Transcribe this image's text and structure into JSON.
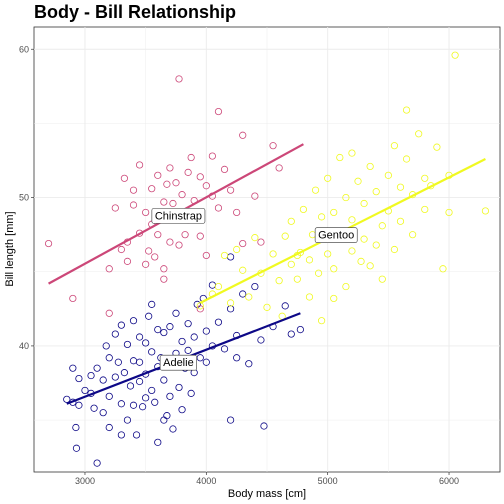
{
  "chart_data": {
    "type": "scatter",
    "title": "Body - Bill Relationship",
    "xlabel": "Body mass [cm]",
    "ylabel": "Bill length [mm]",
    "xlim": [
      2580,
      6420
    ],
    "ylim": [
      31.5,
      61.5
    ],
    "x_ticks": [
      3000,
      4000,
      5000,
      6000
    ],
    "y_ticks": [
      40,
      50,
      60
    ],
    "grid": true,
    "legend": "none",
    "series": [
      {
        "name": "Adelie",
        "color": "#0d0887",
        "points": [
          [
            2850,
            36.4
          ],
          [
            2900,
            36.2
          ],
          [
            2900,
            38.5
          ],
          [
            2925,
            34.5
          ],
          [
            2930,
            33.1
          ],
          [
            2950,
            37.8
          ],
          [
            2950,
            36.0
          ],
          [
            3000,
            37.0
          ],
          [
            3050,
            38.0
          ],
          [
            3050,
            36.8
          ],
          [
            3075,
            35.8
          ],
          [
            3100,
            32.1
          ],
          [
            3150,
            35.5
          ],
          [
            3150,
            37.7
          ],
          [
            3175,
            40.0
          ],
          [
            3200,
            34.5
          ],
          [
            3200,
            36.6
          ],
          [
            3200,
            39.2
          ],
          [
            3250,
            37.9
          ],
          [
            3250,
            40.8
          ],
          [
            3275,
            38.9
          ],
          [
            3300,
            36.1
          ],
          [
            3300,
            41.4
          ],
          [
            3325,
            38.2
          ],
          [
            3350,
            35.0
          ],
          [
            3350,
            40.1
          ],
          [
            3375,
            37.3
          ],
          [
            3400,
            36.0
          ],
          [
            3400,
            39.0
          ],
          [
            3400,
            41.7
          ],
          [
            3425,
            34.0
          ],
          [
            3450,
            37.6
          ],
          [
            3450,
            40.6
          ],
          [
            3475,
            35.9
          ],
          [
            3500,
            38.1
          ],
          [
            3500,
            40.2
          ],
          [
            3500,
            36.5
          ],
          [
            3525,
            42.0
          ],
          [
            3550,
            39.6
          ],
          [
            3550,
            37.0
          ],
          [
            3575,
            36.2
          ],
          [
            3600,
            33.5
          ],
          [
            3600,
            38.6
          ],
          [
            3600,
            41.1
          ],
          [
            3625,
            39.2
          ],
          [
            3650,
            37.7
          ],
          [
            3650,
            40.9
          ],
          [
            3675,
            35.3
          ],
          [
            3700,
            38.8
          ],
          [
            3700,
            41.3
          ],
          [
            3700,
            36.6
          ],
          [
            3725,
            34.4
          ],
          [
            3750,
            39.5
          ],
          [
            3750,
            42.2
          ],
          [
            3775,
            37.2
          ],
          [
            3800,
            40.3
          ],
          [
            3800,
            35.7
          ],
          [
            3825,
            38.5
          ],
          [
            3850,
            41.5
          ],
          [
            3850,
            39.7
          ],
          [
            3875,
            36.8
          ],
          [
            3900,
            40.6
          ],
          [
            3900,
            38.2
          ],
          [
            3925,
            42.8
          ],
          [
            3950,
            39.2
          ],
          [
            3975,
            43.2
          ],
          [
            4000,
            41.0
          ],
          [
            4000,
            38.9
          ],
          [
            4050,
            44.1
          ],
          [
            4050,
            40.0
          ],
          [
            4100,
            41.6
          ],
          [
            4150,
            39.8
          ],
          [
            4200,
            46.0
          ],
          [
            4200,
            42.5
          ],
          [
            4250,
            40.7
          ],
          [
            4300,
            43.5
          ],
          [
            4350,
            38.8
          ],
          [
            4400,
            44.0
          ],
          [
            4450,
            40.4
          ],
          [
            4475,
            34.6
          ],
          [
            4550,
            41.3
          ],
          [
            4650,
            42.7
          ],
          [
            4700,
            40.8
          ],
          [
            4775,
            41.1
          ],
          [
            4200,
            35.0
          ],
          [
            3450,
            38.9
          ],
          [
            3300,
            34.0
          ],
          [
            3650,
            35.0
          ],
          [
            3100,
            38.5
          ],
          [
            3550,
            42.8
          ],
          [
            4250,
            39.2
          ]
        ],
        "trend": [
          [
            2850,
            36.1
          ],
          [
            4775,
            42.2
          ]
        ]
      },
      {
        "name": "Chinstrap",
        "color": "#cc4778",
        "points": [
          [
            2700,
            46.9
          ],
          [
            2900,
            43.2
          ],
          [
            3200,
            45.2
          ],
          [
            3250,
            49.3
          ],
          [
            3300,
            46.5
          ],
          [
            3325,
            51.3
          ],
          [
            3350,
            45.7
          ],
          [
            3400,
            49.5
          ],
          [
            3400,
            50.5
          ],
          [
            3450,
            47.6
          ],
          [
            3450,
            52.2
          ],
          [
            3500,
            45.5
          ],
          [
            3500,
            49.0
          ],
          [
            3525,
            46.4
          ],
          [
            3550,
            50.6
          ],
          [
            3550,
            48.2
          ],
          [
            3575,
            46.0
          ],
          [
            3600,
            51.5
          ],
          [
            3600,
            47.5
          ],
          [
            3650,
            49.7
          ],
          [
            3650,
            45.2
          ],
          [
            3675,
            50.9
          ],
          [
            3700,
            52.0
          ],
          [
            3700,
            47.0
          ],
          [
            3725,
            49.6
          ],
          [
            3750,
            51.0
          ],
          [
            3775,
            46.8
          ],
          [
            3775,
            58.0
          ],
          [
            3800,
            50.2
          ],
          [
            3825,
            47.5
          ],
          [
            3850,
            51.7
          ],
          [
            3850,
            48.5
          ],
          [
            3875,
            52.7
          ],
          [
            3900,
            49.8
          ],
          [
            3950,
            47.4
          ],
          [
            3950,
            51.4
          ],
          [
            4000,
            50.8
          ],
          [
            4000,
            46.1
          ],
          [
            4050,
            52.8
          ],
          [
            4050,
            50.1
          ],
          [
            4100,
            49.3
          ],
          [
            4100,
            55.8
          ],
          [
            4150,
            51.9
          ],
          [
            4200,
            50.5
          ],
          [
            4300,
            46.9
          ],
          [
            4300,
            54.2
          ],
          [
            4400,
            50.1
          ],
          [
            4550,
            53.5
          ],
          [
            4600,
            52.0
          ],
          [
            3950,
            42.5
          ],
          [
            3200,
            42.2
          ],
          [
            4250,
            49.0
          ],
          [
            3350,
            47.0
          ],
          [
            3650,
            44.5
          ],
          [
            4450,
            47.0
          ]
        ],
        "trend": [
          [
            2700,
            44.2
          ],
          [
            4800,
            53.6
          ]
        ]
      },
      {
        "name": "Gentoo",
        "color": "#f0f921",
        "points": [
          [
            3950,
            42.7
          ],
          [
            4050,
            43.5
          ],
          [
            4100,
            44.0
          ],
          [
            4150,
            46.1
          ],
          [
            4200,
            42.9
          ],
          [
            4250,
            46.5
          ],
          [
            4300,
            45.1
          ],
          [
            4350,
            43.3
          ],
          [
            4400,
            47.3
          ],
          [
            4450,
            44.9
          ],
          [
            4500,
            42.6
          ],
          [
            4550,
            46.2
          ],
          [
            4600,
            44.4
          ],
          [
            4650,
            47.4
          ],
          [
            4700,
            45.5
          ],
          [
            4700,
            48.4
          ],
          [
            4750,
            44.5
          ],
          [
            4775,
            46.3
          ],
          [
            4800,
            49.2
          ],
          [
            4850,
            45.8
          ],
          [
            4850,
            43.3
          ],
          [
            4875,
            47.5
          ],
          [
            4900,
            50.5
          ],
          [
            4925,
            44.9
          ],
          [
            4950,
            48.7
          ],
          [
            5000,
            46.2
          ],
          [
            5000,
            51.3
          ],
          [
            5050,
            45.2
          ],
          [
            5050,
            49.0
          ],
          [
            5100,
            47.6
          ],
          [
            5100,
            52.7
          ],
          [
            5150,
            44.0
          ],
          [
            5150,
            50.0
          ],
          [
            5200,
            46.4
          ],
          [
            5200,
            48.5
          ],
          [
            5250,
            51.1
          ],
          [
            5275,
            45.7
          ],
          [
            5300,
            49.6
          ],
          [
            5300,
            47.2
          ],
          [
            5350,
            52.1
          ],
          [
            5400,
            46.8
          ],
          [
            5400,
            50.4
          ],
          [
            5450,
            48.1
          ],
          [
            5450,
            44.5
          ],
          [
            5500,
            51.5
          ],
          [
            5500,
            49.1
          ],
          [
            5550,
            46.5
          ],
          [
            5550,
            53.5
          ],
          [
            5600,
            50.7
          ],
          [
            5600,
            48.4
          ],
          [
            5650,
            52.6
          ],
          [
            5650,
            55.9
          ],
          [
            5700,
            50.2
          ],
          [
            5700,
            47.5
          ],
          [
            5750,
            54.3
          ],
          [
            5800,
            51.3
          ],
          [
            5800,
            49.2
          ],
          [
            5850,
            50.8
          ],
          [
            5900,
            53.4
          ],
          [
            5950,
            45.2
          ],
          [
            6000,
            51.5
          ],
          [
            6000,
            49.0
          ],
          [
            6050,
            59.6
          ],
          [
            6300,
            49.1
          ],
          [
            4750,
            46.1
          ],
          [
            5050,
            43.2
          ],
          [
            4625,
            42.0
          ],
          [
            5200,
            53.0
          ],
          [
            4950,
            41.7
          ],
          [
            5350,
            45.4
          ]
        ],
        "trend": [
          [
            3950,
            42.9
          ],
          [
            6300,
            52.6
          ]
        ]
      }
    ],
    "annotations": [
      {
        "text": "Adelie",
        "x": 3770,
        "y": 38.9
      },
      {
        "text": "Chinstrap",
        "x": 3770,
        "y": 48.8
      },
      {
        "text": "Gentoo",
        "x": 5070,
        "y": 47.5
      }
    ]
  }
}
